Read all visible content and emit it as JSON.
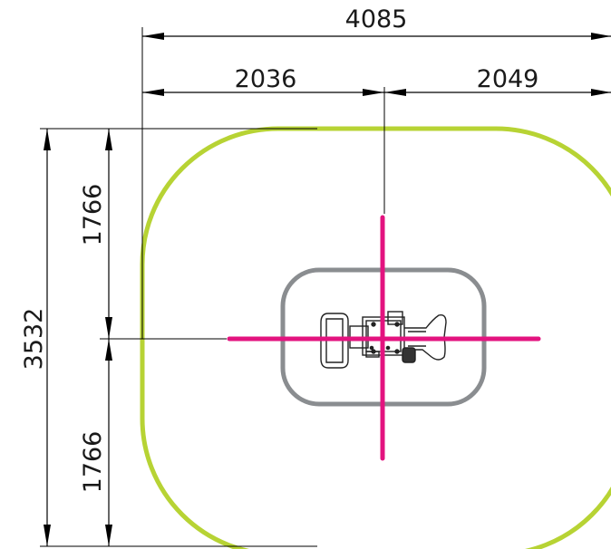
{
  "dimensions": {
    "overall_width": "4085",
    "left_half_width": "2036",
    "right_half_width": "2049",
    "overall_depth": "3532",
    "top_half_depth": "1766",
    "bottom_half_depth": "1766"
  },
  "colors": {
    "safety_zone": "#b7d334",
    "base_pad": "#8a8d90",
    "center_axes": "#e3137f",
    "lines": "#000000"
  }
}
